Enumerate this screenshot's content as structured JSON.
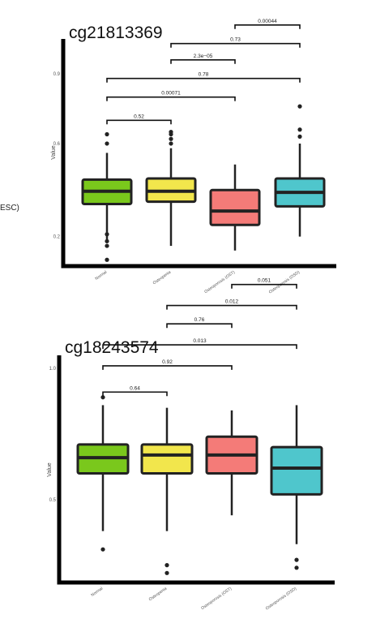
{
  "side_text": "ESC)",
  "chart_data": [
    {
      "type": "box",
      "title": "cg21813369",
      "ylabel": "Value",
      "categories": [
        "Normal",
        "Osteopenia",
        "Osteoporosis (OST)",
        "Osteoporosis (OSD)"
      ],
      "colors": [
        "#7ac81c",
        "#f2e64c",
        "#f47b78",
        "#4fc6cc"
      ],
      "yticks": [
        0.2,
        0.6,
        0.9
      ],
      "ylim": [
        0.08,
        1.05
      ],
      "boxes": [
        {
          "whisker_low": 0.18,
          "q1": 0.34,
          "median": 0.395,
          "q3": 0.445,
          "whisker_high": 0.56,
          "outliers": [
            0.1,
            0.16,
            0.18,
            0.21,
            0.6,
            0.64
          ]
        },
        {
          "whisker_low": 0.16,
          "q1": 0.35,
          "median": 0.395,
          "q3": 0.45,
          "whisker_high": 0.58,
          "outliers": [
            0.6,
            0.62,
            0.64,
            0.65
          ]
        },
        {
          "whisker_low": 0.14,
          "q1": 0.25,
          "median": 0.31,
          "q3": 0.4,
          "whisker_high": 0.51
        },
        {
          "whisker_low": 0.2,
          "q1": 0.33,
          "median": 0.39,
          "q3": 0.45,
          "whisker_high": 0.6,
          "outliers": [
            0.63,
            0.66,
            0.76
          ]
        }
      ],
      "comparisons": [
        {
          "from": 0,
          "to": 1,
          "label": "0.52",
          "y": 0.7
        },
        {
          "from": 0,
          "to": 2,
          "label": "0.00071",
          "y": 0.8
        },
        {
          "from": 0,
          "to": 3,
          "label": "0.78",
          "y": 0.88
        },
        {
          "from": 1,
          "to": 2,
          "label": "2.3e−05",
          "y": 0.96
        },
        {
          "from": 1,
          "to": 3,
          "label": "0.73",
          "y": 1.03
        },
        {
          "from": 2,
          "to": 3,
          "label": "0.00044",
          "y": 1.11
        }
      ]
    },
    {
      "type": "box",
      "title": "cg18243574",
      "ylabel": "Value",
      "categories": [
        "Normal",
        "Osteopenia",
        "Osteoporosis (OST)",
        "Osteoporosis (OSD)"
      ],
      "colors": [
        "#7ac81c",
        "#f2e64c",
        "#f47b78",
        "#4fc6cc"
      ],
      "yticks": [
        0.5,
        1.0
      ],
      "ylim": [
        0.19,
        1.05
      ],
      "boxes": [
        {
          "whisker_low": 0.38,
          "q1": 0.6,
          "median": 0.66,
          "q3": 0.71,
          "whisker_high": 0.86,
          "outliers": [
            0.31,
            0.89
          ]
        },
        {
          "whisker_low": 0.38,
          "q1": 0.6,
          "median": 0.67,
          "q3": 0.71,
          "whisker_high": 0.85,
          "outliers": [
            0.22,
            0.25
          ]
        },
        {
          "whisker_low": 0.44,
          "q1": 0.6,
          "median": 0.67,
          "q3": 0.74,
          "whisker_high": 0.84
        },
        {
          "whisker_low": 0.33,
          "q1": 0.52,
          "median": 0.62,
          "q3": 0.7,
          "whisker_high": 0.86,
          "outliers": [
            0.24,
            0.27
          ]
        }
      ],
      "comparisons": [
        {
          "from": 0,
          "to": 1,
          "label": "0.64",
          "y": 0.91
        },
        {
          "from": 0,
          "to": 2,
          "label": "0.92",
          "y": 1.01
        },
        {
          "from": 0,
          "to": 3,
          "label": "0.013",
          "y": 1.09
        },
        {
          "from": 1,
          "to": 2,
          "label": "0.76",
          "y": 1.17
        },
        {
          "from": 1,
          "to": 3,
          "label": "0.012",
          "y": 1.24
        },
        {
          "from": 2,
          "to": 3,
          "label": "0.051",
          "y": 1.32
        }
      ]
    }
  ]
}
